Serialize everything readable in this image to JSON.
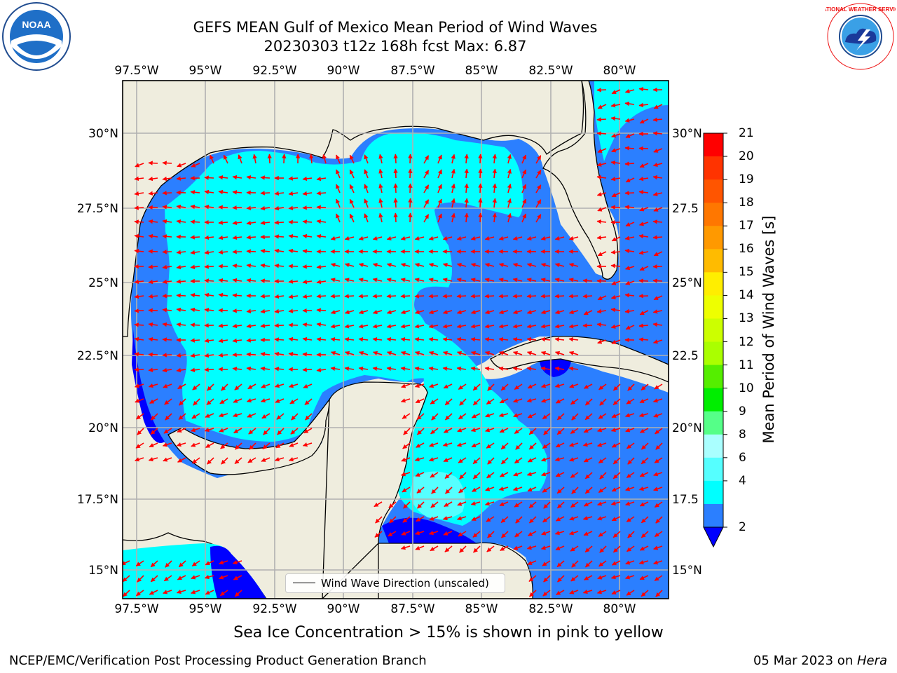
{
  "header": {
    "title_line1": "GEFS MEAN Gulf of Mexico Mean Period of Wind Waves",
    "title_line2": "20230303 t12z 168h fcst   Max: 6.87"
  },
  "logos": {
    "left": "NOAA",
    "right": "NATIONAL WEATHER SERVICE"
  },
  "map": {
    "lon_labels": [
      "97.5°W",
      "95°W",
      "92.5°W",
      "90°W",
      "87.5°W",
      "85°W",
      "82.5°W",
      "80°W"
    ],
    "lat_labels_left": [
      "30°N",
      "27.5°N",
      "25°N",
      "22.5°N",
      "20°N",
      "17.5°N",
      "15°N"
    ],
    "lat_labels_right": [
      "30°N",
      "27.5",
      "25°N",
      "22.5",
      "20°N",
      "17.5",
      "15°N"
    ],
    "legend_label": "Wind Wave Direction (unscaled)",
    "colors": {
      "land": "#efedde",
      "level_2_4": "#2b7fff",
      "level_4_6": "#00ffff",
      "level_6_8": "#55ffff",
      "below_2": "#0000ff",
      "arrow": "#ff0000"
    }
  },
  "colorbar": {
    "label": "Mean Period of Wind Waves [s]",
    "ticks": [
      "21",
      "20",
      "19",
      "18",
      "17",
      "16",
      "15",
      "14",
      "13",
      "12",
      "11",
      "10",
      "9",
      "8",
      "6",
      "4",
      "2"
    ],
    "colors": [
      "#ff0000",
      "#ff3300",
      "#ff5500",
      "#ff7700",
      "#ff9900",
      "#ffbb00",
      "#ffee00",
      "#eeff00",
      "#ccff00",
      "#aaff00",
      "#55ee00",
      "#00ee00",
      "#55ff88",
      "#aaffff",
      "#55ffff",
      "#00ffff",
      "#2b7fff"
    ]
  },
  "notes": {
    "sea_ice": "Sea Ice Concentration > 15% is shown in pink to yellow",
    "footer_left": "NCEP/EMC/Verification Post Processing Product Generation Branch",
    "footer_date": "05 Mar 2023 on ",
    "footer_machine": "Hera"
  }
}
